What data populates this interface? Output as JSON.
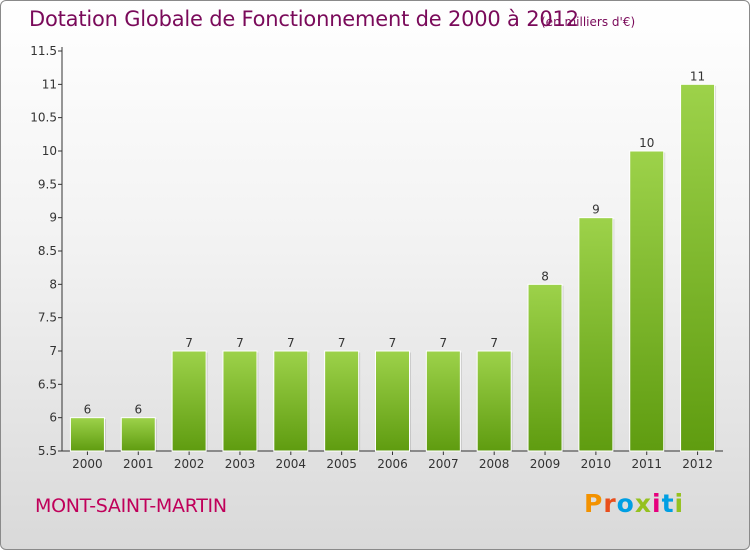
{
  "header": {
    "title": "Dotation Globale de Fonctionnement de 2000 à 2012",
    "unit": "(en milliers d'€)"
  },
  "footer": {
    "commune": "MONT-SAINT-MARTIN",
    "logo": "Proxiti"
  },
  "colors": {
    "title": "#7a0a5a",
    "commune": "#c0005a",
    "bar_top": "#9dd24a",
    "bar_bottom": "#5f9c10",
    "logo_letters": [
      "#f39200",
      "#e94e1b",
      "#009fe3",
      "#95c11f",
      "#e6007e",
      "#009fe3",
      "#95c11f"
    ]
  },
  "chart_data": {
    "type": "bar",
    "title": "Dotation Globale de Fonctionnement de 2000 à 2012",
    "subtitle": "(en milliers d'€)",
    "categories": [
      "2000",
      "2001",
      "2002",
      "2003",
      "2004",
      "2005",
      "2006",
      "2007",
      "2008",
      "2009",
      "2010",
      "2011",
      "2012"
    ],
    "values": [
      6,
      6,
      7,
      7,
      7,
      7,
      7,
      7,
      7,
      8,
      9,
      10,
      11
    ],
    "data_labels": [
      "6",
      "6",
      "7",
      "7",
      "7",
      "7",
      "7",
      "7",
      "7",
      "8",
      "9",
      "10",
      "11"
    ],
    "ylim": [
      5.5,
      11.5
    ],
    "yticks": [
      "5.5",
      "6",
      "6.5",
      "7",
      "7.5",
      "8",
      "8.5",
      "9",
      "9.5",
      "10",
      "10.5",
      "11",
      "11.5"
    ],
    "xlabel": "",
    "ylabel": "",
    "grid": false,
    "legend": "none"
  }
}
